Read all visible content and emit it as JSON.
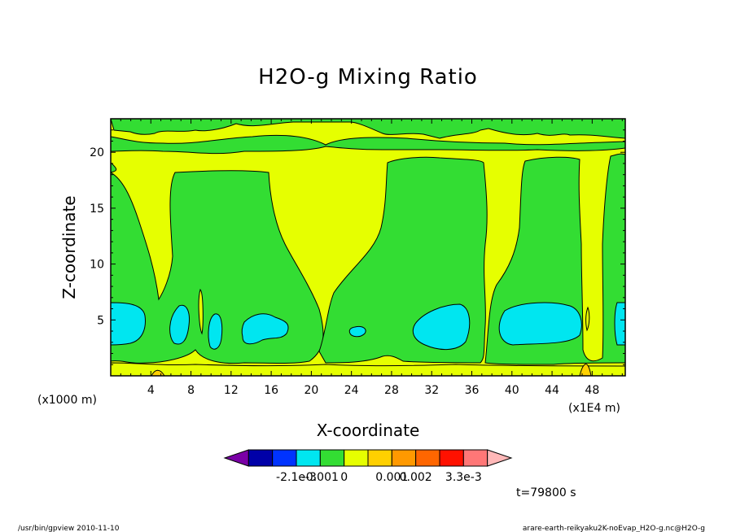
{
  "chart_data": {
    "type": "heatmap",
    "title": "H2O-g Mixing Ratio",
    "xlabel": "X-coordinate",
    "ylabel": "Z-coordinate",
    "x_unit_left": "(x1000 m)",
    "x_unit_right": "(x1E4 m)",
    "x_ticks": [
      "4",
      "8",
      "12",
      "16",
      "20",
      "24",
      "28",
      "32",
      "36",
      "40",
      "44",
      "48"
    ],
    "x_tick_values": [
      4,
      8,
      12,
      16,
      20,
      24,
      28,
      32,
      36,
      40,
      44,
      48
    ],
    "y_ticks": [
      "5",
      "10",
      "15",
      "20"
    ],
    "y_tick_values": [
      5,
      10,
      15,
      20
    ],
    "xlim": [
      0,
      51.3
    ],
    "ylim": [
      0,
      23
    ],
    "time_label": "t=79800 s",
    "footer_left": "/usr/bin/gpview  2010-11-10",
    "footer_right": "arare-earth-reikyaku2K-noEvap_H2O-g.nc@H2O-g",
    "colorbar": {
      "colors": [
        "#7a00a6",
        "#0000a8",
        "#0033ff",
        "#00e6f0",
        "#33dd33",
        "#e6ff00",
        "#ffd000",
        "#ff9900",
        "#ff6600",
        "#ff1100",
        "#ff7777",
        "#ffb8b8"
      ],
      "labels": [
        "-2.1e-3",
        "-0.001",
        "0",
        "0.001",
        "0.002",
        "3.3e-3"
      ],
      "label_positions": [
        3,
        4,
        5,
        7,
        8,
        10
      ]
    },
    "fields": {
      "background_color": "#e6ff00",
      "green_color": "#33dd33",
      "cyan_color": "#00e6f0",
      "orange_color": "#ffd000",
      "green_regions": [
        {
          "x": [
            0,
            22.5
          ],
          "z": [
            0.8,
            20
          ]
        },
        {
          "x": [
            26.5,
            41
          ],
          "z": [
            0.8,
            19.5
          ]
        },
        {
          "x": [
            41,
            48
          ],
          "z": [
            0.8,
            19.5
          ]
        }
      ],
      "cyan_regions": [
        {
          "x": [
            0,
            3.5
          ],
          "z": [
            2.8,
            6.5
          ]
        },
        {
          "x": [
            5.6,
            7.6
          ],
          "z": [
            3,
            6.5
          ]
        },
        {
          "x": [
            9.7,
            11
          ],
          "z": [
            2.5,
            5.5
          ]
        },
        {
          "x": [
            13,
            17.5
          ],
          "z": [
            3,
            5.5
          ]
        },
        {
          "x": [
            23.4,
            25
          ],
          "z": [
            3.5,
            4.5
          ]
        },
        {
          "x": [
            30,
            36
          ],
          "z": [
            2.5,
            6.5
          ]
        },
        {
          "x": [
            38,
            46.5
          ],
          "z": [
            2.5,
            6.8
          ]
        },
        {
          "x": [
            50.5,
            51.3
          ],
          "z": [
            2.8,
            6.5
          ]
        }
      ]
    }
  }
}
